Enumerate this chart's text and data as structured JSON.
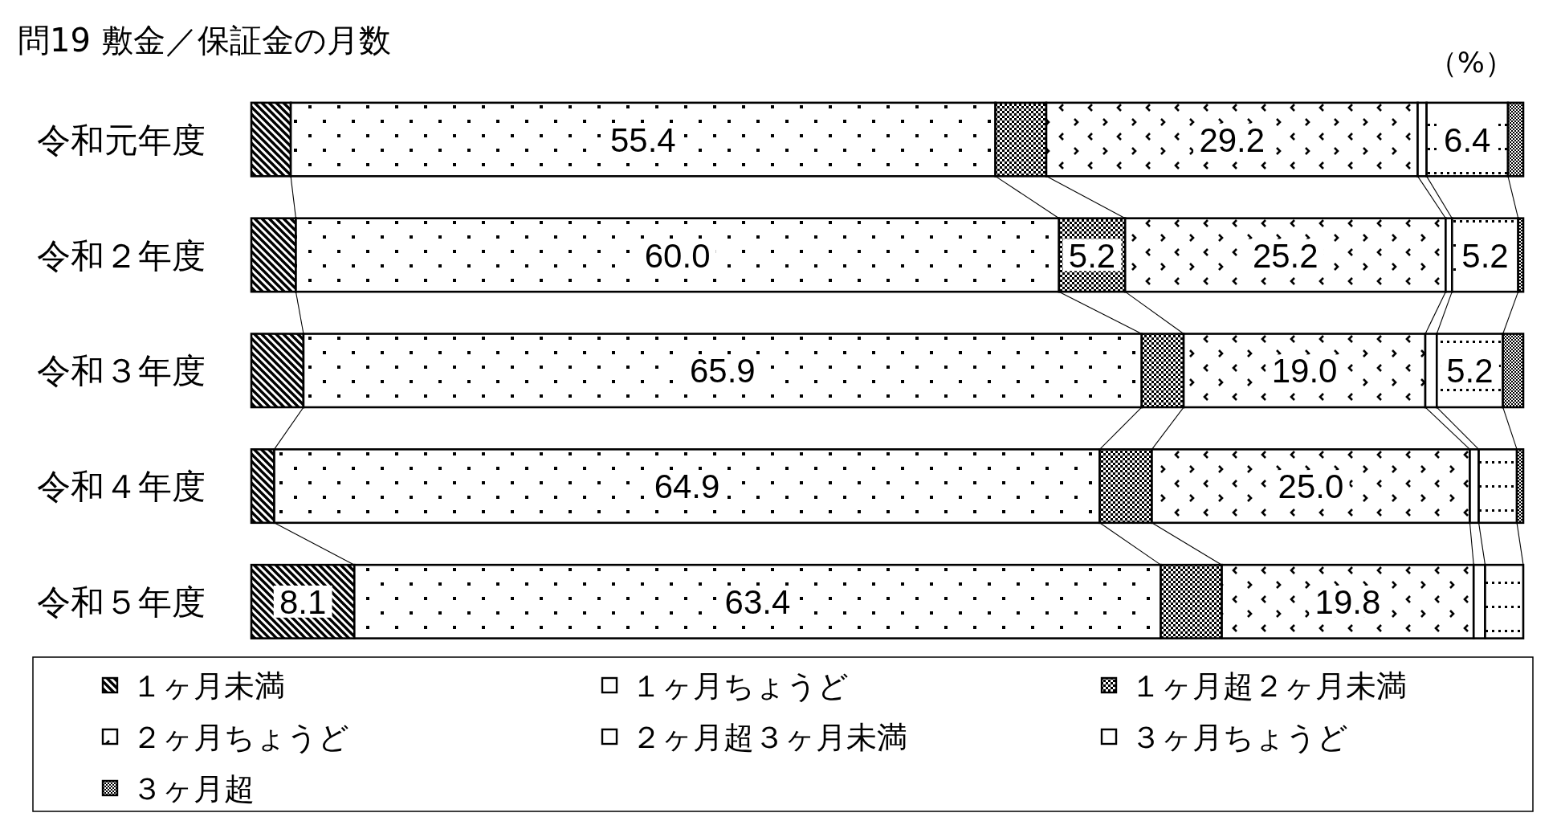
{
  "chart_data": {
    "type": "bar",
    "orientation": "horizontal",
    "stacked": true,
    "title": "問19 敷金／保証金の月数",
    "annotations": [
      "（%）"
    ],
    "categories": [
      "令和元年度",
      "令和２年度",
      "令和３年度",
      "令和４年度",
      "令和５年度"
    ],
    "xlim": [
      0,
      100
    ],
    "tick_labels": "y",
    "legend": "bottom",
    "series": [
      {
        "name": "１ヶ月未満",
        "color": "#000000",
        "values": [
          3.1,
          3.5,
          4.1,
          1.8,
          8.1
        ],
        "value_labels": [
          null,
          null,
          null,
          null,
          "8.1"
        ]
      },
      {
        "name": "１ヶ月ちょうど",
        "color": "#000000",
        "values": [
          55.4,
          60.0,
          65.9,
          64.9,
          63.4
        ],
        "value_labels": [
          "55.4",
          "60.0",
          "65.9",
          "64.9",
          "63.4"
        ]
      },
      {
        "name": "１ヶ月超２ヶ月未満",
        "color": "#000000",
        "values": [
          4.0,
          5.2,
          3.3,
          4.1,
          4.8
        ],
        "value_labels": [
          null,
          "5.2",
          null,
          null,
          null
        ]
      },
      {
        "name": "２ヶ月ちょうど",
        "color": "#000000",
        "values": [
          29.2,
          25.2,
          19.0,
          25.0,
          19.8
        ],
        "value_labels": [
          "29.2",
          "25.2",
          "19.0",
          "25.0",
          "19.8"
        ]
      },
      {
        "name": "２ヶ月超３ヶ月未満",
        "color": "#000000",
        "values": [
          0.7,
          0.5,
          0.9,
          0.7,
          0.9
        ]
      },
      {
        "name": "３ヶ月ちょうど",
        "color": "#000000",
        "values": [
          6.4,
          5.2,
          5.2,
          3.0,
          3.0
        ],
        "value_labels": [
          "6.4",
          "5.2",
          "5.2",
          null,
          null
        ]
      },
      {
        "name": "３ヶ月超",
        "color": "#000000",
        "values": [
          1.2,
          0.4,
          1.6,
          0.5,
          0
        ]
      }
    ]
  }
}
